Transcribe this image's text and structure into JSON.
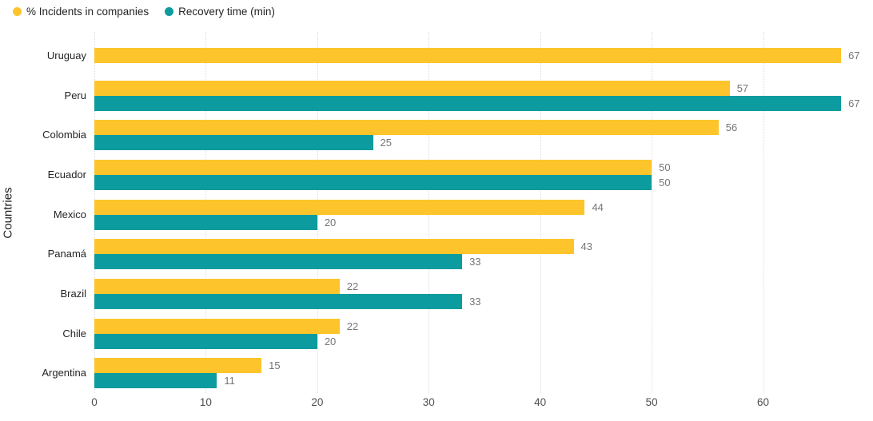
{
  "y_axis_title": "Countries",
  "chart_data": {
    "type": "bar",
    "orientation": "horizontal",
    "title": "",
    "xlabel": "",
    "ylabel": "Countries",
    "categories": [
      "Uruguay",
      "Peru",
      "Colombia",
      "Ecuador",
      "Mexico",
      "Panamá",
      "Brazil",
      "Chile",
      "Argentina"
    ],
    "series": [
      {
        "name": "% Incidents in companies",
        "color": "#FDC52B",
        "values": [
          67,
          57,
          56,
          50,
          44,
          43,
          22,
          22,
          15
        ]
      },
      {
        "name": "Recovery time (min)",
        "color": "#0C9B9E",
        "values": [
          null,
          67,
          25,
          50,
          20,
          33,
          33,
          20,
          11
        ]
      }
    ],
    "x_ticks": [
      0,
      10,
      20,
      30,
      40,
      50,
      60
    ],
    "xlim": [
      0,
      69
    ],
    "grid": "vertical-dotted",
    "legend_position": "top-left",
    "data_labels": true,
    "colors": {
      "grid": "#dcdcdc",
      "value_label": "#767676",
      "tick_label": "#4f4f4f",
      "category_label": "#252423",
      "legend_label": "#252423",
      "background": "#ffffff"
    }
  }
}
